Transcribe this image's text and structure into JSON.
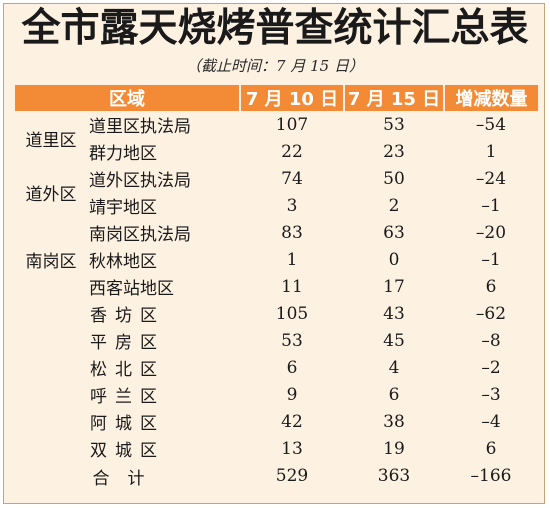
{
  "title": "全市露天烧烤普查统计汇总表",
  "subtitle": "（截止时间：7 月 15 日）",
  "headers": [
    "区域",
    "7 月 10 日",
    "7 月 15 日",
    "增减数量"
  ],
  "groups": [
    {
      "name": "道里区",
      "rows": [
        {
          "sub": "道里区执法局",
          "jul10": "107",
          "jul15": "53",
          "change": "–54"
        },
        {
          "sub": "群力地区",
          "jul10": "22",
          "jul15": "23",
          "change": "1"
        }
      ]
    },
    {
      "name": "道外区",
      "rows": [
        {
          "sub": "道外区执法局",
          "jul10": "74",
          "jul15": "50",
          "change": "–24"
        },
        {
          "sub": "靖宇地区",
          "jul10": "3",
          "jul15": "2",
          "change": "–1"
        }
      ]
    },
    {
      "name": "南岗区",
      "rows": [
        {
          "sub": "南岗区执法局",
          "jul10": "83",
          "jul15": "63",
          "change": "–20"
        },
        {
          "sub": "秋林地区",
          "jul10": "1",
          "jul15": "0",
          "change": "–1"
        },
        {
          "sub": "西客站地区",
          "jul10": "11",
          "jul15": "17",
          "change": "6"
        }
      ]
    }
  ],
  "singles": [
    {
      "name": "香坊区",
      "jul10": "105",
      "jul15": "43",
      "change": "–62"
    },
    {
      "name": "平房区",
      "jul10": "53",
      "jul15": "45",
      "change": "–8"
    },
    {
      "name": "松北区",
      "jul10": "6",
      "jul15": "4",
      "change": "–2"
    },
    {
      "name": "呼兰区",
      "jul10": "9",
      "jul15": "6",
      "change": "–3"
    },
    {
      "name": "阿城区",
      "jul10": "42",
      "jul15": "38",
      "change": "–4"
    },
    {
      "name": "双城区",
      "jul10": "13",
      "jul15": "19",
      "change": "6"
    }
  ],
  "total": {
    "label": "合计",
    "jul10": "529",
    "jul15": "363",
    "change": "–166"
  },
  "colors": {
    "header_bg": "#f28a36",
    "page_bg": "#fdf1e2"
  }
}
